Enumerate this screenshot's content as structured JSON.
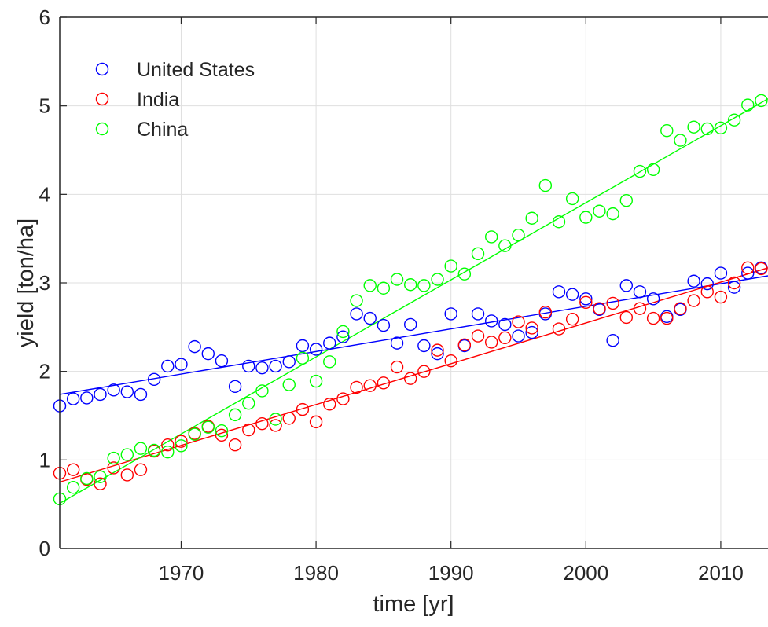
{
  "chart_data": {
    "type": "scatter",
    "title": "",
    "xlabel": "time [yr]",
    "ylabel": "yield [ton/ha]",
    "xlim": [
      1961,
      2013.5
    ],
    "ylim": [
      0,
      6
    ],
    "xticks": [
      1970,
      1980,
      1990,
      2000,
      2010
    ],
    "yticks": [
      0,
      1,
      2,
      3,
      4,
      5,
      6
    ],
    "grid": true,
    "legend_position": "top-left",
    "series": [
      {
        "name": "United States",
        "color": "#0000ff",
        "x": [
          1961,
          1962,
          1963,
          1964,
          1965,
          1966,
          1967,
          1968,
          1969,
          1970,
          1971,
          1972,
          1973,
          1974,
          1975,
          1976,
          1977,
          1978,
          1979,
          1980,
          1981,
          1982,
          1983,
          1984,
          1985,
          1986,
          1987,
          1988,
          1989,
          1990,
          1991,
          1992,
          1993,
          1994,
          1995,
          1996,
          1997,
          1998,
          1999,
          2000,
          2001,
          2002,
          2003,
          2004,
          2005,
          2006,
          2007,
          2008,
          2009,
          2010,
          2011,
          2012,
          2013
        ],
        "y": [
          1.61,
          1.69,
          1.7,
          1.74,
          1.79,
          1.77,
          1.74,
          1.91,
          2.06,
          2.08,
          2.28,
          2.2,
          2.12,
          1.83,
          2.06,
          2.04,
          2.06,
          2.11,
          2.29,
          2.25,
          2.32,
          2.39,
          2.65,
          2.6,
          2.52,
          2.32,
          2.53,
          2.29,
          2.2,
          2.65,
          2.29,
          2.65,
          2.57,
          2.53,
          2.4,
          2.44,
          2.65,
          2.9,
          2.87,
          2.82,
          2.7,
          2.35,
          2.97,
          2.9,
          2.82,
          2.62,
          2.7,
          3.02,
          2.99,
          3.11,
          2.95,
          3.11,
          3.17
        ],
        "fit": [
          1.74,
          3.08
        ]
      },
      {
        "name": "India",
        "color": "#ff0000",
        "x": [
          1961,
          1962,
          1963,
          1964,
          1965,
          1966,
          1967,
          1968,
          1969,
          1970,
          1971,
          1972,
          1973,
          1974,
          1975,
          1976,
          1977,
          1978,
          1979,
          1980,
          1981,
          1982,
          1983,
          1984,
          1985,
          1986,
          1987,
          1988,
          1989,
          1990,
          1991,
          1992,
          1993,
          1994,
          1995,
          1996,
          1997,
          1998,
          1999,
          2000,
          2001,
          2002,
          2003,
          2004,
          2005,
          2006,
          2007,
          2008,
          2009,
          2010,
          2011,
          2012,
          2013
        ],
        "y": [
          0.85,
          0.89,
          0.78,
          0.73,
          0.91,
          0.83,
          0.89,
          1.1,
          1.17,
          1.21,
          1.3,
          1.38,
          1.28,
          1.17,
          1.34,
          1.41,
          1.39,
          1.47,
          1.57,
          1.43,
          1.63,
          1.69,
          1.82,
          1.84,
          1.87,
          2.05,
          1.92,
          2.0,
          2.24,
          2.12,
          2.3,
          2.4,
          2.33,
          2.38,
          2.56,
          2.49,
          2.67,
          2.48,
          2.59,
          2.78,
          2.71,
          2.77,
          2.61,
          2.71,
          2.6,
          2.6,
          2.71,
          2.8,
          2.9,
          2.84,
          3.0,
          3.17,
          3.16
        ],
        "fit": [
          0.75,
          3.17
        ]
      },
      {
        "name": "China",
        "color": "#00ff00",
        "x": [
          1961,
          1962,
          1963,
          1964,
          1965,
          1966,
          1967,
          1968,
          1969,
          1970,
          1971,
          1972,
          1973,
          1974,
          1975,
          1976,
          1977,
          1978,
          1979,
          1980,
          1981,
          1982,
          1983,
          1984,
          1985,
          1986,
          1987,
          1988,
          1989,
          1990,
          1991,
          1992,
          1993,
          1994,
          1995,
          1996,
          1997,
          1998,
          1999,
          2000,
          2001,
          2002,
          2003,
          2004,
          2005,
          2006,
          2007,
          2008,
          2009,
          2010,
          2011,
          2012,
          2013
        ],
        "y": [
          0.56,
          0.69,
          0.79,
          0.81,
          1.02,
          1.06,
          1.13,
          1.11,
          1.09,
          1.16,
          1.29,
          1.37,
          1.33,
          1.51,
          1.64,
          1.78,
          1.46,
          1.85,
          2.15,
          1.89,
          2.11,
          2.45,
          2.8,
          2.97,
          2.94,
          3.04,
          2.98,
          2.97,
          3.04,
          3.19,
          3.1,
          3.33,
          3.52,
          3.42,
          3.54,
          3.73,
          4.1,
          3.69,
          3.95,
          3.74,
          3.81,
          3.78,
          3.93,
          4.26,
          4.28,
          4.72,
          4.61,
          4.76,
          4.74,
          4.75,
          4.84,
          5.01,
          5.06
        ],
        "fit": [
          0.51,
          5.08
        ]
      }
    ]
  }
}
